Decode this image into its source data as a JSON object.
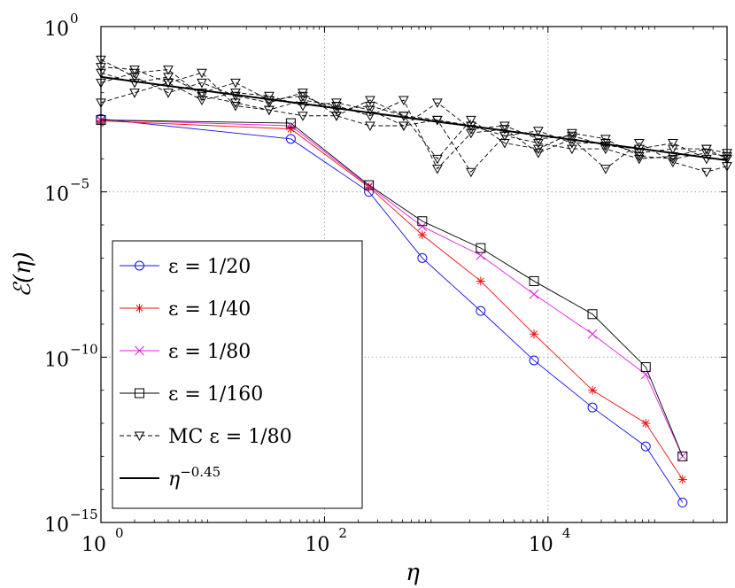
{
  "chart_data": {
    "type": "line",
    "title": "",
    "xlabel": "η",
    "ylabel": "ℰ(η)",
    "xscale": "log",
    "yscale": "log",
    "xlim": [
      1,
      400000
    ],
    "ylim": [
      1e-15,
      1
    ],
    "grid": true,
    "legend_position": "bottom-left",
    "x_ticks": [
      {
        "base": "10",
        "exp": "0",
        "value": 1
      },
      {
        "base": "10",
        "exp": "2",
        "value": 100
      },
      {
        "base": "10",
        "exp": "4",
        "value": 10000
      }
    ],
    "y_ticks": [
      {
        "base": "10",
        "exp": "0",
        "value": 1
      },
      {
        "base": "10",
        "exp": "−5",
        "value": 1e-05
      },
      {
        "base": "10",
        "exp": "−10",
        "value": 1e-10
      },
      {
        "base": "10",
        "exp": "−15",
        "value": 1e-15
      }
    ],
    "series": [
      {
        "name": "ε = 1/20",
        "color": "#1010ee",
        "marker": "circle",
        "style": "solid",
        "x": [
          1,
          50,
          250,
          750,
          2500,
          7500,
          25000,
          75000,
          160000
        ],
        "y": [
          0.0016,
          0.0004,
          1e-05,
          1e-07,
          2.5e-09,
          8e-11,
          3e-12,
          2e-13,
          4e-15
        ]
      },
      {
        "name": "ε = 1/40",
        "color": "#ee1010",
        "marker": "star",
        "style": "solid",
        "x": [
          1,
          50,
          250,
          750,
          2500,
          7500,
          25000,
          75000,
          160000
        ],
        "y": [
          0.0014,
          0.0008,
          1.4e-05,
          5e-07,
          2e-08,
          5e-10,
          1e-11,
          1e-12,
          2e-14
        ]
      },
      {
        "name": "ε = 1/80",
        "color": "#e020e0",
        "marker": "x",
        "style": "solid",
        "x": [
          1,
          50,
          250,
          750,
          2500,
          7500,
          25000,
          75000,
          160000
        ],
        "y": [
          0.0015,
          0.001,
          1.5e-05,
          9e-07,
          1.2e-07,
          8e-09,
          5e-10,
          3e-11,
          1e-13
        ]
      },
      {
        "name": "ε = 1/160",
        "color": "#000000",
        "marker": "square",
        "style": "solid",
        "x": [
          1,
          50,
          250,
          750,
          2500,
          7500,
          25000,
          75000,
          160000
        ],
        "y": [
          0.0015,
          0.0012,
          1.6e-05,
          1.3e-06,
          2e-07,
          2e-08,
          2e-09,
          5e-11,
          1e-13
        ]
      },
      {
        "name": "MC ε = 1/80",
        "color": "#000000",
        "marker": "triangle-down",
        "style": "dashed",
        "runs": [
          {
            "x": [
              1,
              2,
              4,
              8,
              16,
              32,
              64,
              128,
              256,
              512,
              1024,
              2048,
              4096,
              8192,
              16384,
              32768,
              65536,
              131072,
              262144,
              400000
            ],
            "y": [
              0.04,
              0.02,
              0.03,
              0.01,
              0.02,
              0.006,
              0.008,
              0.003,
              0.004,
              0.002,
              0.0015,
              0.001,
              0.0005,
              0.0007,
              0.0003,
              0.0003,
              0.00015,
              0.0002,
              0.0002,
              0.00015
            ]
          },
          {
            "x": [
              1,
              2,
              4,
              8,
              16,
              32,
              64,
              128,
              256,
              512,
              1024,
              2048,
              4096,
              8192,
              16384,
              32768,
              65536,
              131072,
              262144,
              400000
            ],
            "y": [
              0.06,
              0.05,
              0.02,
              0.006,
              0.01,
              0.008,
              0.004,
              0.005,
              0.003,
              0.001,
              0.005,
              0.0008,
              0.001,
              0.0004,
              0.0005,
              0.00025,
              0.0002,
              0.0003,
              0.0001,
              0.0001
            ]
          },
          {
            "x": [
              1,
              2,
              4,
              8,
              16,
              32,
              64,
              128,
              256,
              512,
              1024,
              2048,
              4096,
              8192,
              16384,
              32768,
              65536,
              131072,
              262144,
              400000
            ],
            "y": [
              0.1,
              0.03,
              0.01,
              0.02,
              0.008,
              0.005,
              0.01,
              0.002,
              0.006,
              0.002,
              0.0001,
              0.0015,
              0.0003,
              0.0002,
              0.0006,
              0.0004,
              0.00012,
              0.0001,
              0.00015,
              0.00012
            ]
          },
          {
            "x": [
              1,
              2,
              4,
              8,
              16,
              32,
              64,
              128,
              256,
              512,
              1024,
              2048,
              4096,
              8192,
              16384,
              32768,
              65536,
              131072,
              262144,
              400000
            ],
            "y": [
              0.02,
              0.04,
              0.05,
              0.008,
              0.005,
              0.003,
              0.006,
              0.004,
              0.002,
              0.006,
              5e-05,
              0.0006,
              0.0008,
              0.00015,
              0.0004,
              5e-05,
              0.0003,
              8e-05,
              4e-05,
              6e-05
            ]
          },
          {
            "x": [
              1,
              2,
              4,
              8,
              16,
              32,
              64,
              128,
              256,
              512,
              1024,
              2048,
              4096,
              8192,
              16384,
              32768,
              65536,
              131072,
              262144,
              400000
            ],
            "y": [
              0.005,
              0.01,
              0.02,
              0.04,
              0.004,
              0.003,
              0.002,
              0.002,
              0.001,
              0.001,
              0.0015,
              4e-05,
              0.0005,
              0.0003,
              0.0002,
              0.0002,
              0.0001,
              0.00012,
              0.0002,
              0.0001
            ]
          }
        ]
      },
      {
        "name": "η^{−0.45}",
        "color": "#000000",
        "marker": "none",
        "style": "solid-thick",
        "fit": {
          "coefficient": 0.03,
          "exponent": -0.45
        },
        "x": [
          1,
          400000
        ]
      }
    ],
    "legend": [
      {
        "label_pre": "ε = 1/20",
        "sup": ""
      },
      {
        "label_pre": "ε = 1/40",
        "sup": ""
      },
      {
        "label_pre": "ε = 1/80",
        "sup": ""
      },
      {
        "label_pre": "ε = 1/160",
        "sup": ""
      },
      {
        "label_pre": "MC  ε = 1/80",
        "sup": ""
      },
      {
        "label_pre": "η",
        "sup": "−0.45"
      }
    ]
  }
}
